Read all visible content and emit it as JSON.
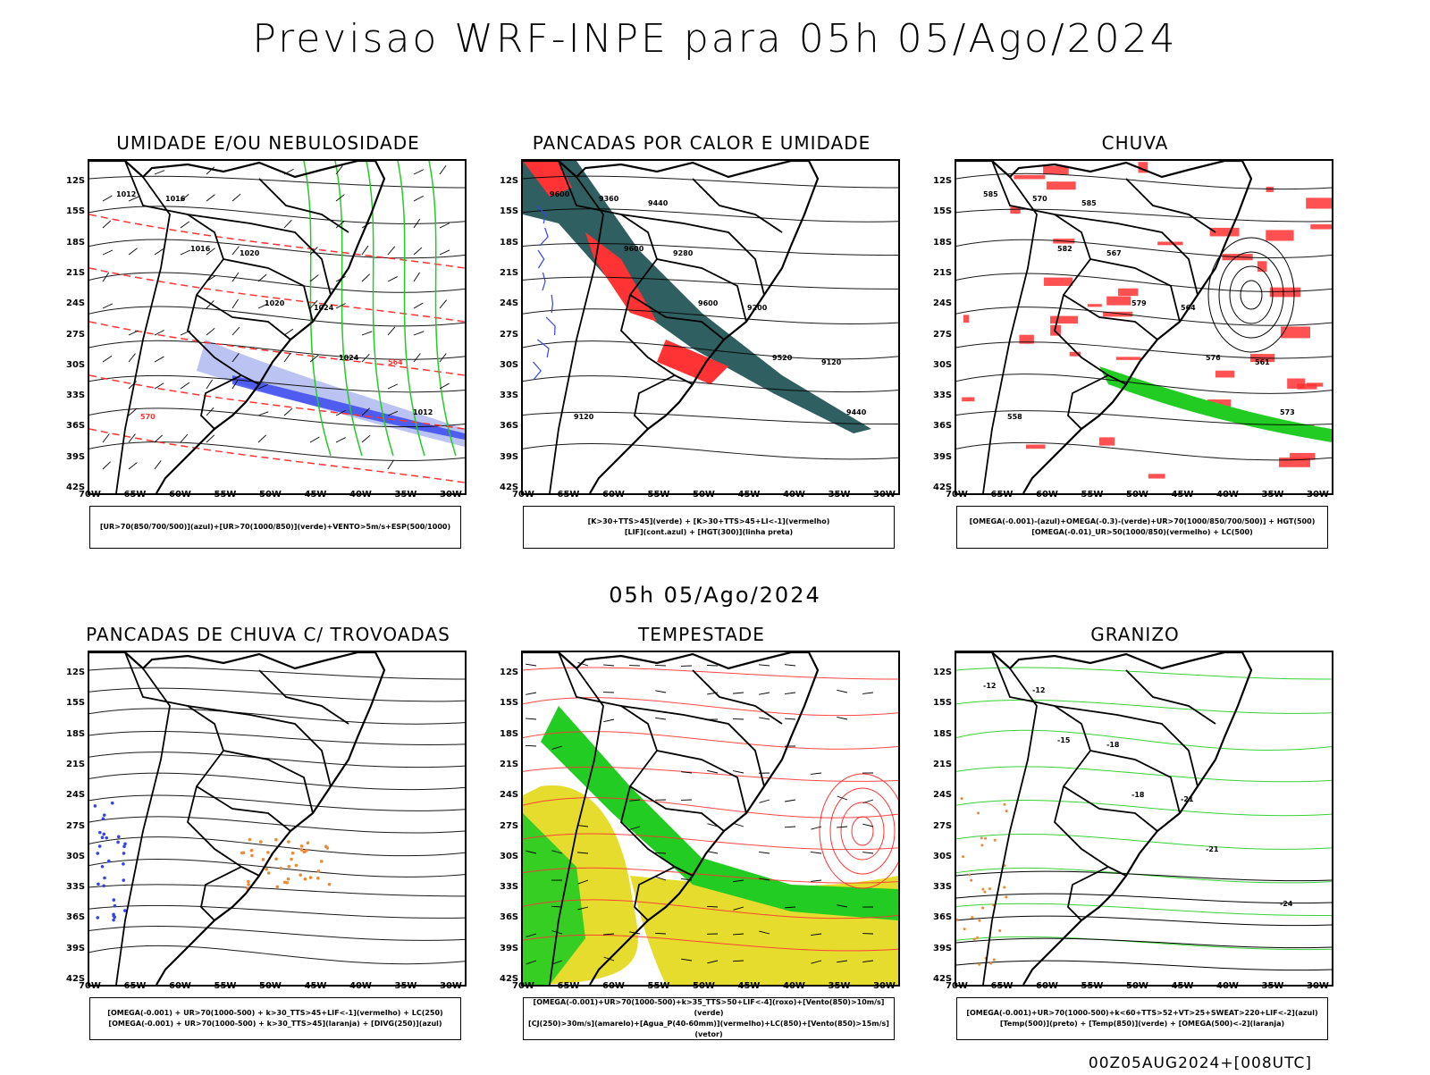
{
  "title": "Previsao WRF-INPE  para 05h 05/Ago/2024",
  "subtitle": "05h 05/Ago/2024",
  "footer": "00Z05AUG2024+[008UTC]",
  "lat_labels": [
    "12S",
    "15S",
    "18S",
    "21S",
    "24S",
    "27S",
    "30S",
    "33S",
    "36S",
    "39S",
    "42S"
  ],
  "lon_labels": [
    "70W",
    "65W",
    "60W",
    "55W",
    "50W",
    "45W",
    "40W",
    "35W",
    "30W"
  ],
  "panels": [
    {
      "title": "UMIDADE E/OU NEBULOSIDADE",
      "legend": [
        "[UR>70(850/700/500)](azul)+[UR>70(1000/850)](verde)+VENTO>5m/s+ESP(500/1000)"
      ],
      "labels": [
        "1012",
        "1016",
        "1020",
        "1024",
        "1012",
        "1016",
        "1020",
        "1024",
        "564",
        "570"
      ]
    },
    {
      "title": "PANCADAS POR CALOR E UMIDADE",
      "legend": [
        "[K>30+TTS>45](verde)  +  [K>30+TTS>45+LI<-1](vermelho)",
        "[LIF](cont.azul)  +  [HGT(300)](linha preta)"
      ],
      "labels": [
        "9600",
        "9600",
        "9600",
        "9520",
        "9440",
        "9360",
        "9280",
        "9200",
        "9120",
        "9120",
        "9440"
      ]
    },
    {
      "title": "CHUVA",
      "legend": [
        "[OMEGA(-0.001)-(azul)+OMEGA(-0.3)-(verde)+UR>70(1000/850/700/500)]  +  HGT(500)",
        "[OMEGA(-0.01)_UR>50(1000/850)(vermelho)  +  LC(500)"
      ],
      "labels": [
        "585",
        "582",
        "579",
        "576",
        "573",
        "570",
        "567",
        "564",
        "561",
        "558",
        "585"
      ]
    },
    {
      "title": "PANCADAS DE CHUVA C/ TROVOADAS",
      "legend": [
        "[OMEGA(-0.001)  +  UR>70(1000-500)  +  k>30_TTS>45+LIF<-1](vermelho)  +  LC(250)",
        "[OMEGA(-0.001)  +  UR>70(1000-500)  +  k>30_TTS>45](laranja)  +  [DIVG(250)](azul)"
      ],
      "labels": []
    },
    {
      "title": "TEMPESTADE",
      "legend": [
        "[OMEGA(-0.001)+UR>70(1000-500)+k>35_TTS>50+LIF<-4](roxo)+[Vento(850)>10m/s](verde)",
        "[CJ(250)>30m/s](amarelo)+[Agua_P(40-60mm)](vermelho)+LC(850)+[Vento(850)>15m/s](vetor)"
      ],
      "labels": []
    },
    {
      "title": "GRANIZO",
      "legend": [
        "[OMEGA(-0.001)+UR>70(1000-500)+k<60+TTS>52+VT>25+SWEAT>220+LIF<-2](azul)",
        "[Temp(500)](preto)  +  [Temp(850)](verde)  +  [OMEGA(500)<-2](laranja)"
      ],
      "labels": [
        "-12",
        "-15",
        "-18",
        "-21",
        "-24",
        "-12",
        "-18",
        "-21"
      ]
    }
  ],
  "colors": {
    "black": "#000000",
    "red": "#ff3333",
    "green": "#22cc22",
    "blue": "#3344ee",
    "lightblue": "#aab4f0",
    "teal": "#2f5f60",
    "orange": "#ee8833",
    "yellow": "#e6dc2e"
  }
}
